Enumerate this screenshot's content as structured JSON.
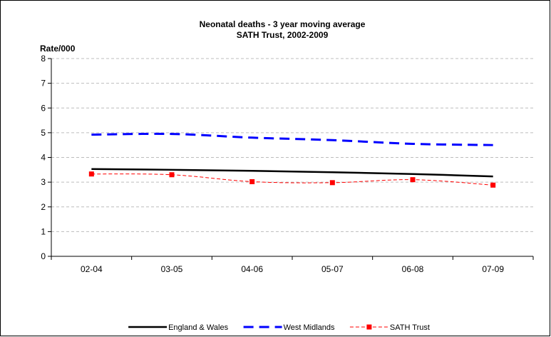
{
  "chart_data": {
    "type": "line",
    "title": "Neonatal deaths - 3 year moving average",
    "subtitle": "SATH Trust, 2002-2009",
    "ylabel": "Rate/000",
    "xlabel": "",
    "ylim": [
      0,
      8
    ],
    "yticks": [
      0,
      1,
      2,
      3,
      4,
      5,
      6,
      7,
      8
    ],
    "grid": true,
    "legend_position": "bottom",
    "categories": [
      "02-04",
      "03-05",
      "04-06",
      "05-07",
      "06-08",
      "07-09"
    ],
    "series": [
      {
        "name": "England & Wales",
        "values": [
          3.53,
          3.5,
          3.46,
          3.4,
          3.33,
          3.23
        ],
        "color": "#000000",
        "style": "solid"
      },
      {
        "name": "West Midlands",
        "values": [
          4.92,
          4.95,
          4.8,
          4.7,
          4.55,
          4.5
        ],
        "color": "#0000ff",
        "style": "dashed"
      },
      {
        "name": "SATH Trust",
        "values": [
          3.33,
          3.3,
          3.02,
          2.98,
          3.1,
          2.88
        ],
        "color": "#ff0000",
        "style": "dashed-markers"
      }
    ]
  }
}
